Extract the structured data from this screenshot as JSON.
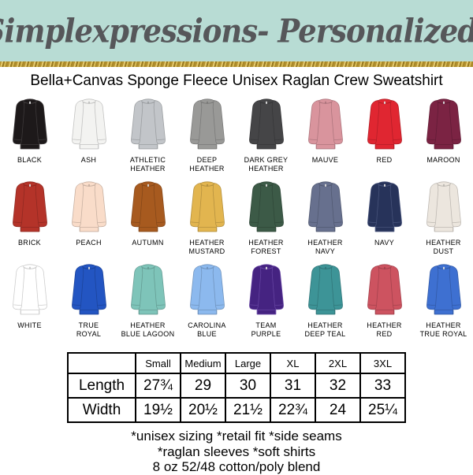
{
  "header": {
    "title": "Simplexpressions- Personalized!",
    "bg_color": "#b8dcd4",
    "text_color": "#56575a",
    "glitter_color": "#c9a43a"
  },
  "subtitle": "Bella+Canvas Sponge Fleece Unisex Raglan Crew Sweatshirt",
  "colors": [
    {
      "label": "BLACK",
      "hex": "#1d191a"
    },
    {
      "label": "ASH",
      "hex": "#f3f3f1"
    },
    {
      "label": "ATHLETIC\nHEATHER",
      "hex": "#c2c5c9"
    },
    {
      "label": "DEEP\nHEATHER",
      "hex": "#999997"
    },
    {
      "label": "DARK GREY\nHEATHER",
      "hex": "#454547"
    },
    {
      "label": "MAUVE",
      "hex": "#d9949d"
    },
    {
      "label": "RED",
      "hex": "#e02631"
    },
    {
      "label": "MAROON",
      "hex": "#7b2343"
    },
    {
      "label": "BRICK",
      "hex": "#b43329"
    },
    {
      "label": "PEACH",
      "hex": "#f9dcc9"
    },
    {
      "label": "AUTUMN",
      "hex": "#a75a1f"
    },
    {
      "label": "HEATHER\nMUSTARD",
      "hex": "#e2b54f"
    },
    {
      "label": "HEATHER\nFOREST",
      "hex": "#3c5a47"
    },
    {
      "label": "HEATHER\nNAVY",
      "hex": "#67708e"
    },
    {
      "label": "NAVY",
      "hex": "#27335a"
    },
    {
      "label": "HEATHER\nDUST",
      "hex": "#ece6de"
    },
    {
      "label": "WHITE",
      "hex": "#ffffff"
    },
    {
      "label": "TRUE\nROYAL",
      "hex": "#2355c2"
    },
    {
      "label": "HEATHER\nBLUE LAGOON",
      "hex": "#7ec4b9"
    },
    {
      "label": "CAROLINA\nBLUE",
      "hex": "#8cb9ee"
    },
    {
      "label": "TEAM\nPURPLE",
      "hex": "#452381"
    },
    {
      "label": "HEATHER\nDEEP TEAL",
      "hex": "#3d9497"
    },
    {
      "label": "HEATHER\nRED",
      "hex": "#cd5360"
    },
    {
      "label": "HEATHER\nTRUE ROYAL",
      "hex": "#3e70d1"
    }
  ],
  "size_table": {
    "columns": [
      "",
      "Small",
      "Medium",
      "Large",
      "XL",
      "2XL",
      "3XL"
    ],
    "rows": [
      {
        "label": "Length",
        "values": [
          "27¾",
          "29",
          "30",
          "31",
          "32",
          "33"
        ]
      },
      {
        "label": "Width",
        "values": [
          "19½",
          "20½",
          "21½",
          "22¾",
          "24",
          "25¼"
        ]
      }
    ]
  },
  "footer_lines": [
    "*unisex sizing *retail fit *side seams",
    "*raglan sleeves *soft shirts",
    "8 oz 52/48 cotton/poly blend"
  ]
}
